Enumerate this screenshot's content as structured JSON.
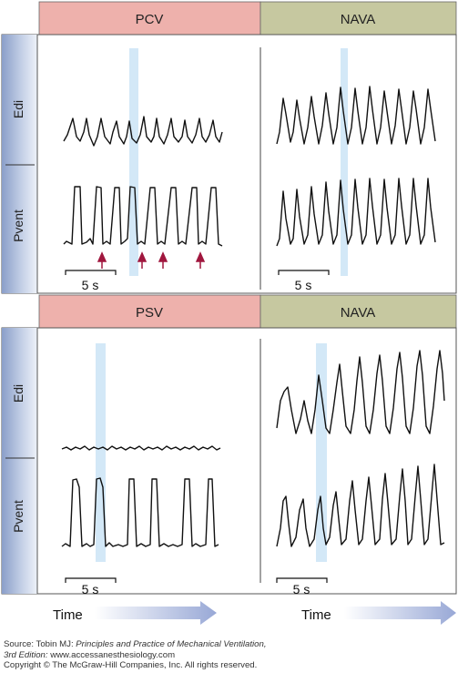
{
  "panels": [
    {
      "id": "top",
      "left_header": "PCV",
      "right_header": "NAVA",
      "rows": [
        "Edi",
        "Pvent"
      ],
      "left_scale": "5 s",
      "right_scale": "5 s"
    },
    {
      "id": "bottom",
      "left_header": "PSV",
      "right_header": "NAVA",
      "rows": [
        "Edi",
        "Pvent"
      ],
      "left_scale": "5 s",
      "right_scale": "5 s",
      "time_label_left": "Time",
      "time_label_right": "Time"
    }
  ],
  "colors": {
    "pcv_psv_header": "#eeb1ac",
    "nava_header": "#c6c8a0",
    "highlight_band": "#d3e8f7",
    "arrow": "#a0173e",
    "time_arrow": "#a9b6dc"
  },
  "footer": {
    "source_prefix": "Source: Tobin MJ: ",
    "source_title": "Principles and Practice of Mechanical Ventilation,",
    "edition": "3rd Edition:",
    "url": " www.accessanesthesiology.com",
    "copyright": "Copyright © The McGraw-Hill Companies, Inc. All rights reserved."
  }
}
